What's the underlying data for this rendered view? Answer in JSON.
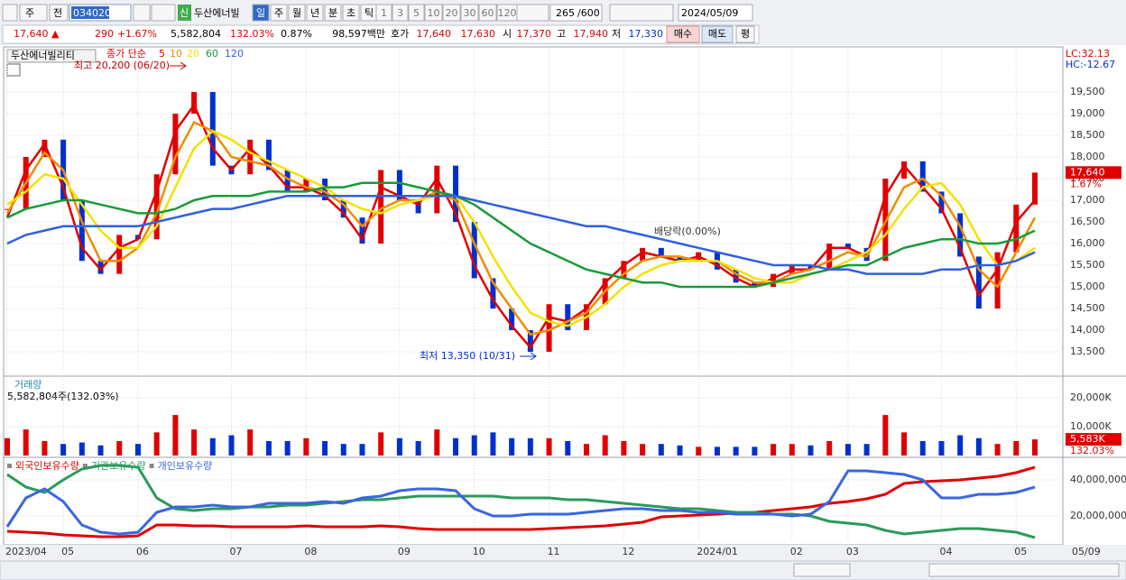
{
  "toolbar": {
    "period_type": "주",
    "compare": "전",
    "code": "034020",
    "badge": "신",
    "name": "두산에너빌",
    "periods": [
      "일",
      "주",
      "월",
      "년",
      "분",
      "초",
      "틱"
    ],
    "numbers": [
      "1",
      "3",
      "5",
      "10",
      "20",
      "30",
      "60",
      "120"
    ],
    "count": "265",
    "total": "/600",
    "date": "2024/05/09"
  },
  "info": {
    "price": "17,640 ▲",
    "change": "290",
    "change_pct": "+1.67%",
    "volume": "5,582,804",
    "volume_pct": "132.03%",
    "turnover": "0.87%",
    "amount": "98,597백만",
    "quote_label": "호가",
    "ask": "17,640",
    "bid": "17,630",
    "open_label": "시",
    "open": "17,370",
    "high_label": "고",
    "high": "17,940",
    "low_label": "저",
    "low": "17,330",
    "buy": "매수",
    "sell": "매도",
    "avg": "평"
  },
  "chart_data": [
    {
      "type": "line",
      "title": "두산에너빌리티",
      "legend_title": "종가 단순",
      "lc": "LC:32.13",
      "hc": "HC:-12.67",
      "high_note": "최고 20,200 (06/20)",
      "low_note": "최저 13,350 (10/31)",
      "dividend_note": "배당락(0.00%)",
      "last_label": "17,640",
      "last_change": "1.67%",
      "up_color": "#e00000",
      "down_color": "#0030d0",
      "grid": true,
      "ylim": [
        12980,
        20480
      ],
      "yticks": [
        {
          "value": 13500,
          "label": "13,500"
        },
        {
          "value": 14000,
          "label": "14,000"
        },
        {
          "value": 14500,
          "label": "14,500"
        },
        {
          "value": 15000,
          "label": "15,000"
        },
        {
          "value": 15500,
          "label": "15,500"
        },
        {
          "value": 16000,
          "label": "16,000"
        },
        {
          "value": 16500,
          "label": "16,500"
        },
        {
          "value": 17000,
          "label": "17,000"
        },
        {
          "value": 17500,
          "label": "17,500"
        },
        {
          "value": 18000,
          "label": "18,000"
        },
        {
          "value": 18500,
          "label": "18,500"
        },
        {
          "value": 19000,
          "label": "19,000"
        },
        {
          "value": 19500,
          "label": "19,500"
        }
      ],
      "price_values": [
        16800,
        18000,
        18400,
        17000,
        15600,
        15300,
        16200,
        16100,
        17600,
        19000,
        19500,
        17800,
        17600,
        18400,
        17700,
        17200,
        17500,
        17000,
        16600,
        16000,
        17700,
        17000,
        16700,
        17800,
        16500,
        15200,
        14500,
        14000,
        13500,
        14600,
        14000,
        14600,
        15200,
        15600,
        15900,
        15700,
        15600,
        15800,
        15400,
        15100,
        15000,
        15300,
        15500,
        15400,
        16000,
        15900,
        15600,
        17500,
        17900,
        17200,
        16700,
        15700,
        14500,
        15800,
        16900,
        17640
      ],
      "series": [
        {
          "name": "5",
          "color": "#e00000",
          "values": [
            16600,
            17700,
            18300,
            17300,
            15900,
            15400,
            15900,
            16100,
            17200,
            18600,
            19200,
            18200,
            17700,
            18200,
            17800,
            17300,
            17300,
            17100,
            16700,
            16100,
            17300,
            17100,
            16900,
            17500,
            16700,
            15500,
            14700,
            14100,
            13600,
            14300,
            14200,
            14500,
            15100,
            15500,
            15800,
            15700,
            15600,
            15700,
            15500,
            15200,
            15000,
            15200,
            15400,
            15400,
            15900,
            15900,
            15700,
            17100,
            17800,
            17300,
            16800,
            15900,
            14800,
            15400,
            16500,
            17000
          ]
        },
        {
          "name": "10",
          "color": "#f08c00",
          "values": [
            16700,
            17400,
            18100,
            17700,
            16500,
            15600,
            15600,
            15900,
            16700,
            18000,
            18800,
            18600,
            18000,
            17900,
            17800,
            17500,
            17300,
            17200,
            16900,
            16400,
            16800,
            17000,
            17000,
            17200,
            17000,
            16000,
            15100,
            14500,
            13900,
            14000,
            14200,
            14400,
            14900,
            15300,
            15600,
            15700,
            15700,
            15600,
            15600,
            15300,
            15100,
            15100,
            15300,
            15400,
            15600,
            15800,
            15700,
            16500,
            17300,
            17500,
            17100,
            16400,
            15400,
            15000,
            15800,
            16600
          ]
        },
        {
          "name": "20",
          "color": "#f2e200",
          "values": [
            16900,
            17200,
            17600,
            17500,
            16900,
            16300,
            15900,
            15900,
            16400,
            17300,
            18200,
            18600,
            18400,
            18100,
            17900,
            17700,
            17500,
            17300,
            17000,
            16800,
            16700,
            16900,
            17000,
            17100,
            17100,
            16500,
            15700,
            15000,
            14400,
            14200,
            14100,
            14300,
            14600,
            15000,
            15300,
            15500,
            15600,
            15600,
            15600,
            15400,
            15200,
            15100,
            15100,
            15300,
            15400,
            15600,
            15800,
            16200,
            16800,
            17300,
            17400,
            16900,
            16100,
            15500,
            15600,
            15900
          ]
        },
        {
          "name": "60",
          "color": "#1a9a3a",
          "values": [
            16600,
            16800,
            16900,
            17000,
            17000,
            16900,
            16800,
            16700,
            16700,
            16800,
            17000,
            17100,
            17100,
            17100,
            17200,
            17200,
            17200,
            17300,
            17300,
            17400,
            17400,
            17400,
            17300,
            17200,
            17100,
            16900,
            16600,
            16300,
            16000,
            15800,
            15600,
            15400,
            15300,
            15200,
            15100,
            15100,
            15000,
            15000,
            15000,
            15000,
            15000,
            15100,
            15200,
            15300,
            15400,
            15500,
            15500,
            15700,
            15900,
            16000,
            16100,
            16100,
            16000,
            16000,
            16100,
            16300
          ]
        },
        {
          "name": "120",
          "color": "#3060e0",
          "values": [
            16000,
            16200,
            16300,
            16400,
            16400,
            16400,
            16400,
            16400,
            16500,
            16600,
            16700,
            16800,
            16800,
            16900,
            17000,
            17100,
            17100,
            17100,
            17100,
            17100,
            17100,
            17100,
            17100,
            17100,
            17100,
            17000,
            16900,
            16800,
            16700,
            16600,
            16500,
            16400,
            16400,
            16300,
            16200,
            16100,
            16000,
            15900,
            15800,
            15700,
            15600,
            15500,
            15500,
            15500,
            15400,
            15400,
            15300,
            15300,
            15300,
            15300,
            15400,
            15400,
            15500,
            15500,
            15600,
            15800
          ]
        }
      ]
    },
    {
      "type": "bar",
      "title": "거래량",
      "subtitle": "5,582,804주(132.03%)",
      "last_label": "5,583K",
      "last_pct": "132.03%",
      "grid": true,
      "ylim": [
        0,
        26500
      ],
      "yticks": [
        {
          "value": 10000,
          "label": "10,000K"
        },
        {
          "value": 20000,
          "label": "20,000K"
        }
      ],
      "values": [
        6000,
        9000,
        5000,
        4000,
        4500,
        3500,
        5000,
        4000,
        8000,
        14000,
        9000,
        6000,
        7000,
        9000,
        5000,
        5000,
        6000,
        5000,
        4000,
        4000,
        8000,
        6000,
        5000,
        9000,
        6000,
        7000,
        8000,
        6000,
        6000,
        6000,
        5000,
        4000,
        7000,
        5000,
        4000,
        4000,
        3500,
        3000,
        3000,
        3000,
        3000,
        4000,
        4000,
        3500,
        5000,
        4000,
        4000,
        14000,
        8000,
        5000,
        5000,
        7000,
        6000,
        4000,
        5000,
        5583
      ]
    },
    {
      "type": "line",
      "grid": true,
      "x_end_label": "05/09",
      "ylim": [
        6000000,
        51000000
      ],
      "yticks": [
        {
          "value": 20000000,
          "label": "20,000,000"
        },
        {
          "value": 40000000,
          "label": "40,000,000"
        }
      ],
      "categories": [
        "2023/04",
        null,
        null,
        "05",
        null,
        null,
        null,
        "06",
        null,
        null,
        null,
        null,
        "07",
        null,
        null,
        null,
        "08",
        null,
        null,
        null,
        null,
        "09",
        null,
        null,
        null,
        "10",
        null,
        null,
        null,
        "11",
        null,
        null,
        null,
        "12",
        null,
        null,
        null,
        "2024/01",
        null,
        null,
        null,
        null,
        "02",
        null,
        null,
        "03",
        null,
        null,
        null,
        null,
        "04",
        null,
        null,
        null,
        "05",
        null
      ],
      "series": [
        {
          "name": "외국인보유수량",
          "color": "#e00000",
          "values": [
            11500000,
            11000000,
            10500000,
            9500000,
            9000000,
            8500000,
            8500000,
            9000000,
            15000000,
            15000000,
            14500000,
            14500000,
            14000000,
            14000000,
            14000000,
            14000000,
            14500000,
            14000000,
            14000000,
            14000000,
            14500000,
            14000000,
            13000000,
            12500000,
            12500000,
            12500000,
            12500000,
            12500000,
            12500000,
            13000000,
            13500000,
            14000000,
            14500000,
            15500000,
            16500000,
            19500000,
            20000000,
            20500000,
            21000000,
            21500000,
            22000000,
            23000000,
            24000000,
            25000000,
            27000000,
            28000000,
            29500000,
            32000000,
            38000000,
            39000000,
            39500000,
            40000000,
            41000000,
            42000000,
            44000000,
            47000000
          ]
        },
        {
          "name": "기관보유수량",
          "color": "#2a9a5a",
          "values": [
            43000000,
            36000000,
            33000000,
            40000000,
            46000000,
            48000000,
            48000000,
            47000000,
            30000000,
            24000000,
            23000000,
            24000000,
            24000000,
            25000000,
            25000000,
            26000000,
            26000000,
            27000000,
            28000000,
            29000000,
            29000000,
            30000000,
            31000000,
            31000000,
            31000000,
            31000000,
            31000000,
            30000000,
            30000000,
            30000000,
            29000000,
            29000000,
            28000000,
            27000000,
            26000000,
            25000000,
            24000000,
            24000000,
            23000000,
            22000000,
            22000000,
            21000000,
            21000000,
            20000000,
            17000000,
            16000000,
            15000000,
            12000000,
            10000000,
            11000000,
            12000000,
            13000000,
            13000000,
            12000000,
            11000000,
            8000000
          ]
        },
        {
          "name": "개인보유수량",
          "color": "#3a66e0",
          "values": [
            14000000,
            30000000,
            35000000,
            28000000,
            15000000,
            11000000,
            10000000,
            11000000,
            22000000,
            25000000,
            25000000,
            26000000,
            25000000,
            25000000,
            27000000,
            27000000,
            27000000,
            28000000,
            27000000,
            30000000,
            31000000,
            34000000,
            35000000,
            35000000,
            34000000,
            24000000,
            20000000,
            20000000,
            21000000,
            21000000,
            21000000,
            22000000,
            23000000,
            24000000,
            24000000,
            23000000,
            23000000,
            22000000,
            22000000,
            21000000,
            21000000,
            21000000,
            20000000,
            21000000,
            28000000,
            45000000,
            45000000,
            44000000,
            43000000,
            40000000,
            30000000,
            30000000,
            32000000,
            32000000,
            33000000,
            36000000
          ]
        }
      ]
    }
  ]
}
